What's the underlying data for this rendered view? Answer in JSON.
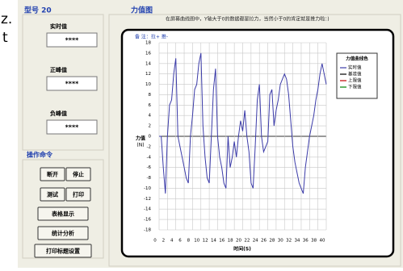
{
  "background_text": [
    "z.",
    "t"
  ],
  "ui": {
    "model_label": "型号 20",
    "chart_group_title": "力值图",
    "chart_note": "在屏幕曲线图中，Y轴大于0的数据都是拉力，当然小于0的肯定就是推力啦：)",
    "readouts": [
      {
        "label": "实时值",
        "value": "****"
      },
      {
        "label": "正峰值",
        "value": "****"
      },
      {
        "label": "负峰值",
        "value": "****"
      }
    ],
    "commands_title": "操作命令",
    "buttons": [
      "断开",
      "停止",
      "测试",
      "打印",
      "表格显示",
      "统计分析",
      "打印标题设置"
    ]
  },
  "chart_data": {
    "type": "line",
    "annotation": "备 注：拉+ 推-",
    "ylabel": "力值",
    "ylabel_unit": "(N)",
    "xlabel": "时间(S)",
    "x": [
      0,
      0.5,
      1,
      1.5,
      2,
      2.5,
      3,
      3.5,
      4,
      4.5,
      5,
      5.5,
      6,
      6.5,
      7,
      7.5,
      8,
      8.5,
      9,
      9.5,
      10,
      10.5,
      11,
      11.5,
      12,
      12.5,
      13,
      13.5,
      14,
      14.5,
      15,
      15.5,
      16,
      16.5,
      17,
      17.5,
      18,
      18.5,
      19,
      19.5,
      20,
      20.5,
      21,
      21.5,
      22,
      22.5,
      23,
      23.5,
      24,
      24.5,
      25,
      25.5,
      26,
      26.5,
      27,
      27.5,
      28,
      28.5,
      29,
      29.5,
      30,
      30.5,
      31,
      31.5,
      32,
      32.5,
      33,
      33.5,
      34,
      34.5,
      35,
      35.5,
      36,
      36.5,
      37,
      37.5,
      38,
      38.5,
      39,
      39.5,
      40
    ],
    "series": [
      {
        "name": "实时值",
        "color": "#3b3ba8",
        "values": [
          0,
          0,
          -6,
          -11,
          0,
          6,
          7,
          12,
          15,
          0,
          -2,
          -4,
          -6,
          -8,
          -9,
          0,
          4,
          9,
          10,
          14,
          16,
          2,
          -4,
          -8,
          -9,
          0,
          9,
          13,
          0,
          -4,
          -6,
          -9,
          -10,
          0,
          -6,
          -4,
          -1,
          -4,
          0,
          3,
          1,
          5,
          0,
          -3,
          -9,
          -10,
          -2,
          7,
          10,
          0,
          -3,
          -2,
          -1,
          8,
          9,
          2,
          5,
          7,
          10,
          11,
          12,
          11,
          8,
          3,
          -2,
          -5,
          -7,
          -9,
          -10,
          -11,
          -6,
          -3,
          0,
          2,
          4,
          7,
          9,
          12,
          14,
          12,
          10
        ]
      }
    ],
    "legend": {
      "title": "力值曲线色",
      "extra_entries": [
        {
          "name": "基准值",
          "color": "#000000"
        },
        {
          "name": "上限值",
          "color": "#c00000"
        },
        {
          "name": "下限值",
          "color": "#008000"
        }
      ]
    },
    "xlim": [
      0,
      40
    ],
    "xticks": [
      0,
      2,
      4,
      6,
      8,
      10,
      12,
      14,
      16,
      18,
      20,
      22,
      24,
      26,
      28,
      30,
      32,
      34,
      36,
      38,
      40
    ],
    "ylim": [
      -18,
      18
    ],
    "yticks": [
      -18,
      -16,
      -14,
      -12,
      -10,
      -8,
      -6,
      -4,
      -2,
      0,
      2,
      4,
      6,
      8,
      10,
      12,
      14,
      16,
      18
    ],
    "grid": true
  }
}
